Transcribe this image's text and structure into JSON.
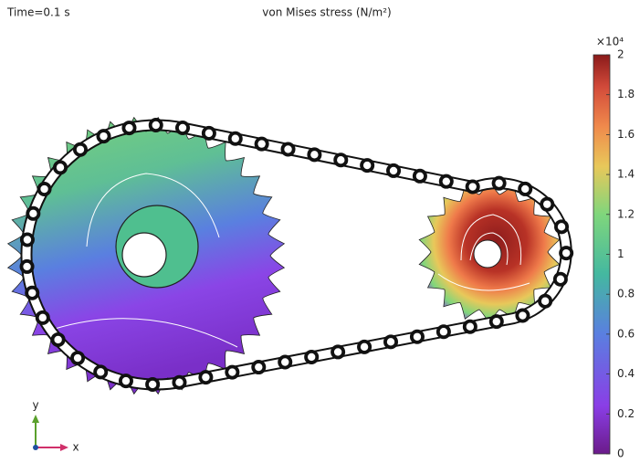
{
  "time_label": "Time=0.1 s",
  "title": "von Mises stress (N/m²)",
  "colorbar": {
    "multiplier": "×10⁴",
    "lim": [
      0,
      2
    ],
    "ticks": [
      0,
      0.2,
      0.4,
      0.6,
      0.8,
      1,
      1.2,
      1.4,
      1.6,
      1.8,
      2
    ]
  },
  "axes": {
    "x": "x",
    "y": "y"
  }
}
